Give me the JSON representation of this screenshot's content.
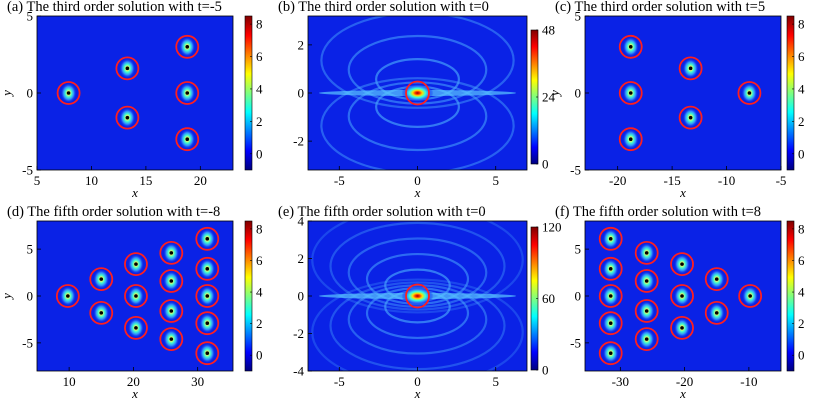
{
  "colors": {
    "background_blue": "#0a22e6",
    "marker_circle": "#ff1e1e",
    "colormap": [
      "#00007f",
      "#0000ff",
      "#007fff",
      "#00ffff",
      "#7fff7f",
      "#ffff00",
      "#ff7f00",
      "#ff0000",
      "#7f0000"
    ]
  },
  "chart_data": [
    {
      "type": "heatmap",
      "panel": "a",
      "title": "(a) The third order solution with t=-5",
      "xlabel": "x",
      "ylabel": "y",
      "xlim": [
        5,
        23
      ],
      "ylim": [
        -5,
        5
      ],
      "xticks": [
        "5",
        "10",
        "15",
        "20"
      ],
      "yticks": [
        "-5",
        "0",
        "5"
      ],
      "colorbar": {
        "range": [
          -1,
          8.5
        ],
        "ticks": [
          "0",
          "2",
          "4",
          "6",
          "8"
        ]
      },
      "peaks": [
        {
          "x": 7.9,
          "y": 0
        },
        {
          "x": 13.3,
          "y": 1.6
        },
        {
          "x": 13.3,
          "y": -1.6
        },
        {
          "x": 18.8,
          "y": 3
        },
        {
          "x": 18.8,
          "y": 0
        },
        {
          "x": 18.8,
          "y": -3
        }
      ]
    },
    {
      "type": "heatmap",
      "panel": "b",
      "title": "(b) The third order solution with t=0",
      "xlabel": "x",
      "ylabel": "",
      "xlim": [
        -7,
        7
      ],
      "ylim": [
        -3.2,
        3.2
      ],
      "xticks": [
        "-5",
        "0",
        "5"
      ],
      "yticks": [
        "-2",
        "0",
        "2"
      ],
      "colorbar": {
        "range": [
          0,
          48
        ],
        "ticks": [
          "0",
          "24",
          "48"
        ]
      },
      "peaks": [
        {
          "x": 0,
          "y": 0
        }
      ]
    },
    {
      "type": "heatmap",
      "panel": "c",
      "title": "(c) The third order solution with t=5",
      "xlabel": "x",
      "ylabel": "y",
      "xlim": [
        -23,
        -5
      ],
      "ylim": [
        -5,
        5
      ],
      "xticks": [
        "-20",
        "-15",
        "-10",
        "-5"
      ],
      "yticks": [
        "-5",
        "0",
        "5"
      ],
      "colorbar": {
        "range": [
          -1,
          8.5
        ],
        "ticks": [
          "0",
          "2",
          "4",
          "6",
          "8"
        ]
      },
      "peaks": [
        {
          "x": -18.8,
          "y": 3
        },
        {
          "x": -18.8,
          "y": 0
        },
        {
          "x": -18.8,
          "y": -3
        },
        {
          "x": -13.3,
          "y": 1.6
        },
        {
          "x": -13.3,
          "y": -1.6
        },
        {
          "x": -7.9,
          "y": 0
        }
      ]
    },
    {
      "type": "heatmap",
      "panel": "d",
      "title": "(d) The fifth order solution with t=-8",
      "xlabel": "x",
      "ylabel": "y",
      "xlim": [
        5,
        35.5
      ],
      "ylim": [
        -8,
        8
      ],
      "xticks": [
        "10",
        "20",
        "30"
      ],
      "yticks": [
        "-5",
        "0",
        "5"
      ],
      "colorbar": {
        "range": [
          -1,
          8.5
        ],
        "ticks": [
          "0",
          "2",
          "4",
          "6",
          "8"
        ]
      },
      "peaks": [
        {
          "x": 9.8,
          "y": 0
        },
        {
          "x": 15,
          "y": 1.8
        },
        {
          "x": 15,
          "y": -1.8
        },
        {
          "x": 20.4,
          "y": 3.4
        },
        {
          "x": 20.4,
          "y": 0
        },
        {
          "x": 20.4,
          "y": -3.4
        },
        {
          "x": 25.9,
          "y": 4.6
        },
        {
          "x": 25.9,
          "y": 1.6
        },
        {
          "x": 25.9,
          "y": -1.6
        },
        {
          "x": 25.9,
          "y": -4.6
        },
        {
          "x": 31.5,
          "y": 6.1
        },
        {
          "x": 31.5,
          "y": 2.9
        },
        {
          "x": 31.5,
          "y": 0
        },
        {
          "x": 31.5,
          "y": -2.9
        },
        {
          "x": 31.5,
          "y": -6.1
        }
      ]
    },
    {
      "type": "heatmap",
      "panel": "e",
      "title": "(e) The fifth order solution with t=0",
      "xlabel": "x",
      "ylabel": "",
      "xlim": [
        -7,
        7
      ],
      "ylim": [
        -4,
        4
      ],
      "xticks": [
        "-5",
        "0",
        "5"
      ],
      "yticks": [
        "-4",
        "-2",
        "0",
        "2",
        "4"
      ],
      "colorbar": {
        "range": [
          0,
          120
        ],
        "ticks": [
          "0",
          "60",
          "120"
        ]
      },
      "peaks": [
        {
          "x": 0,
          "y": 0
        }
      ]
    },
    {
      "type": "heatmap",
      "panel": "f",
      "title": "(f) The fifth order solution with t=8",
      "xlabel": "x",
      "ylabel": "",
      "xlim": [
        -35.5,
        -5
      ],
      "ylim": [
        -8,
        8
      ],
      "xticks": [
        "-30",
        "-20",
        "-10"
      ],
      "yticks": [
        "-5",
        "0",
        "5"
      ],
      "colorbar": {
        "range": [
          -1,
          8.5
        ],
        "ticks": [
          "0",
          "2",
          "4",
          "6",
          "8"
        ]
      },
      "peaks": [
        {
          "x": -31.5,
          "y": 6.1
        },
        {
          "x": -31.5,
          "y": 2.9
        },
        {
          "x": -31.5,
          "y": 0
        },
        {
          "x": -31.5,
          "y": -2.9
        },
        {
          "x": -31.5,
          "y": -6.1
        },
        {
          "x": -25.9,
          "y": 4.6
        },
        {
          "x": -25.9,
          "y": 1.6
        },
        {
          "x": -25.9,
          "y": -1.6
        },
        {
          "x": -25.9,
          "y": -4.6
        },
        {
          "x": -20.4,
          "y": 3.4
        },
        {
          "x": -20.4,
          "y": 0
        },
        {
          "x": -20.4,
          "y": -3.4
        },
        {
          "x": -15,
          "y": 1.8
        },
        {
          "x": -15,
          "y": -1.8
        },
        {
          "x": -9.8,
          "y": 0
        }
      ]
    }
  ]
}
